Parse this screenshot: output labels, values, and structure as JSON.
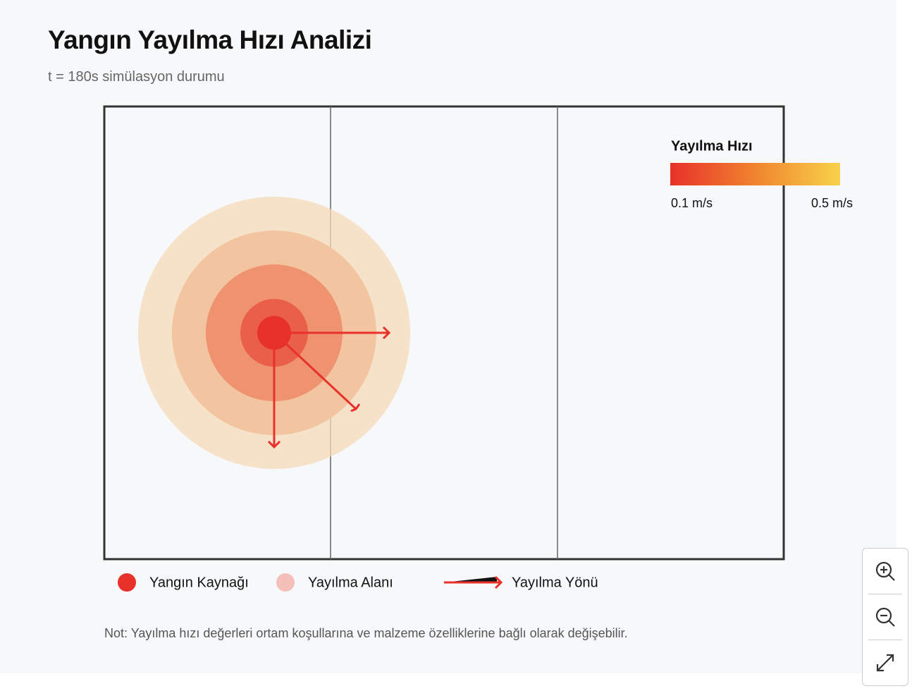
{
  "header": {
    "title": "Yangın Yayılma Hızı Analizi",
    "subtitle": "t = 180s simülasyon durumu"
  },
  "colorbar": {
    "title": "Yayılma Hızı",
    "min_label": "0.1 m/s",
    "max_label": "0.5 m/s"
  },
  "legend": {
    "items": [
      "Yangın Kaynağı",
      "Yayılma Alanı",
      "Yayılma Yönü"
    ]
  },
  "note": "Not: Yayılma hızı değerleri ortam koşullarına ve malzeme özelliklerine bağlı olarak değişebilir."
}
